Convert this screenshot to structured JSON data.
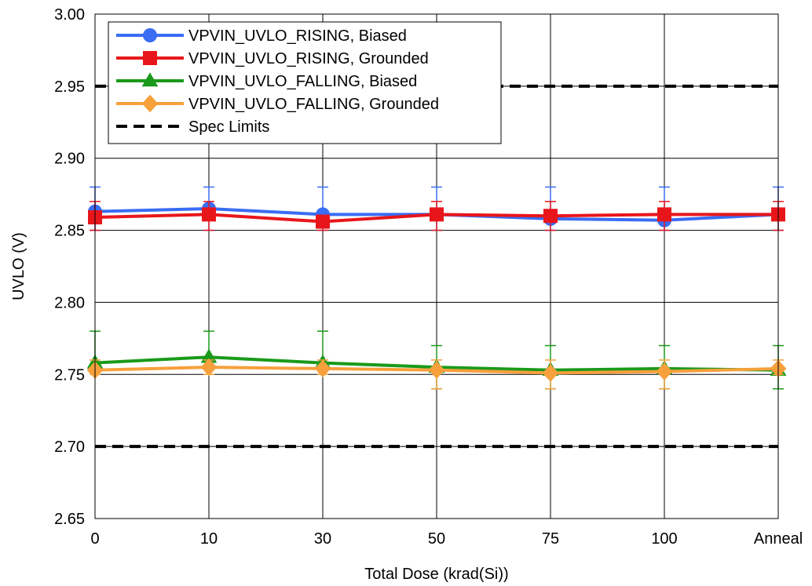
{
  "chart_data": {
    "type": "line",
    "title": "",
    "xlabel": "Total Dose (krad(Si))",
    "ylabel": "UVLO (V)",
    "categories": [
      "0",
      "10",
      "30",
      "50",
      "75",
      "100",
      "Anneal"
    ],
    "ylim": [
      2.65,
      3.0
    ],
    "yticks": [
      "2.65",
      "2.70",
      "2.75",
      "2.80",
      "2.85",
      "2.90",
      "2.95",
      "3.00"
    ],
    "grid": true,
    "legend_position": "top-left",
    "series": [
      {
        "name": "VPVIN_UVLO_RISING, Biased",
        "color": "#3a6cf4",
        "marker": "circle",
        "values": [
          2.863,
          2.865,
          2.861,
          2.861,
          2.858,
          2.857,
          2.861
        ],
        "err_upper": [
          2.88,
          2.88,
          2.88,
          2.88,
          2.88,
          2.88,
          2.88
        ],
        "err_lower": [
          2.85,
          2.85,
          2.85,
          2.85,
          2.85,
          2.85,
          2.85
        ]
      },
      {
        "name": "VPVIN_UVLO_RISING, Grounded",
        "color": "#e8161b",
        "marker": "square",
        "values": [
          2.859,
          2.861,
          2.856,
          2.861,
          2.86,
          2.861,
          2.861
        ],
        "err_upper": [
          2.87,
          2.87,
          2.86,
          2.87,
          2.87,
          2.87,
          2.87
        ],
        "err_lower": [
          2.85,
          2.85,
          2.85,
          2.85,
          2.85,
          2.85,
          2.85
        ]
      },
      {
        "name": "VPVIN_UVLO_FALLING, Biased",
        "color": "#1a9a1a",
        "marker": "triangle",
        "values": [
          2.758,
          2.762,
          2.758,
          2.755,
          2.753,
          2.754,
          2.753
        ],
        "err_upper": [
          2.78,
          2.78,
          2.78,
          2.77,
          2.77,
          2.77,
          2.77
        ],
        "err_lower": [
          2.75,
          2.75,
          2.75,
          2.74,
          2.74,
          2.74,
          2.74
        ]
      },
      {
        "name": "VPVIN_UVLO_FALLING, Grounded",
        "color": "#f7a03c",
        "marker": "diamond",
        "values": [
          2.753,
          2.755,
          2.754,
          2.753,
          2.751,
          2.752,
          2.754
        ],
        "err_upper": [
          2.76,
          2.76,
          2.76,
          2.76,
          2.76,
          2.76,
          2.76
        ],
        "err_lower": [
          2.75,
          2.75,
          2.75,
          2.74,
          2.74,
          2.74,
          2.75
        ]
      }
    ],
    "spec_limits": {
      "name": "Spec Limits",
      "color": "#000000",
      "style": "dashed",
      "values": [
        2.95,
        2.7
      ]
    }
  }
}
